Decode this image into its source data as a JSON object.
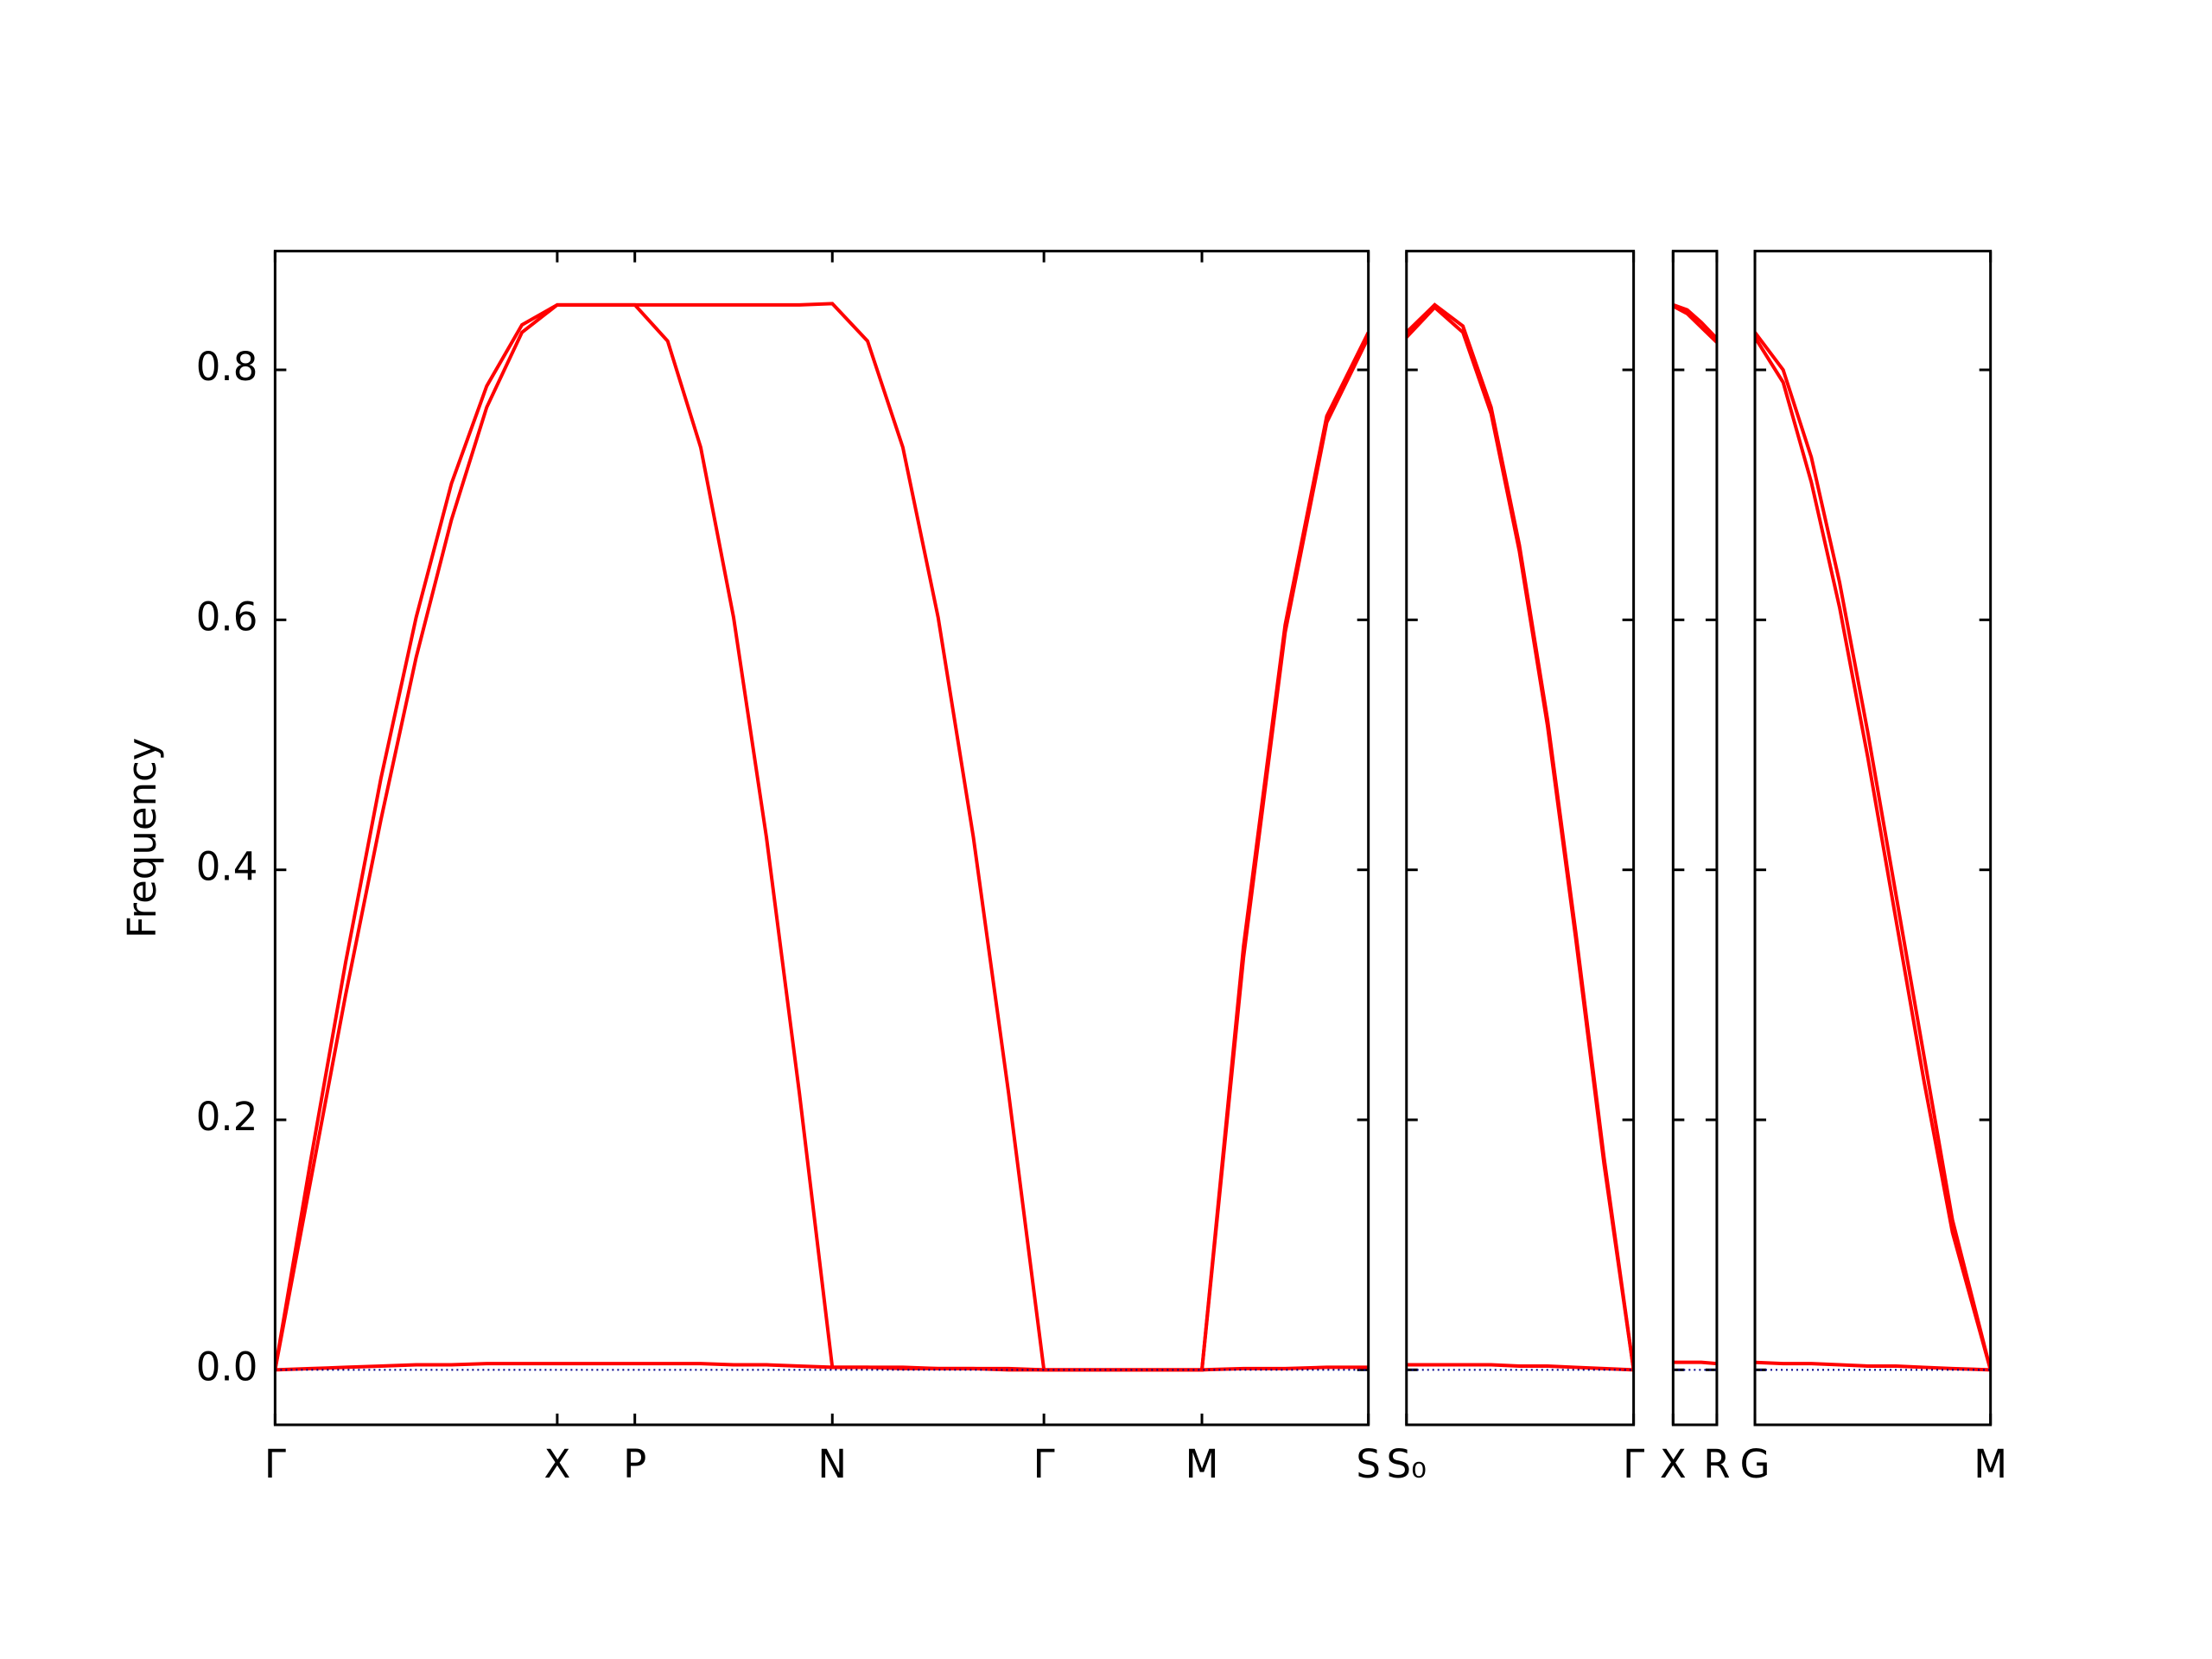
{
  "chart_data": [
    {
      "type": "line",
      "ylabel": "Frequency",
      "ylim": [
        -0.044,
        0.895
      ],
      "yticks": [
        {
          "value": 0,
          "label": "0.0"
        },
        0.2,
        0.4,
        0.6,
        0.8
      ],
      "xlim": [
        0,
        7.75
      ],
      "xticks": [
        {
          "value": 0,
          "label": "Γ"
        },
        {
          "value": 2.0,
          "label": "X"
        },
        {
          "value": 2.55,
          "label": "P"
        },
        {
          "value": 3.95,
          "label": "N"
        },
        {
          "value": 5.45,
          "label": "Γ"
        },
        {
          "value": 6.57,
          "label": "M"
        },
        {
          "value": 7.75,
          "label": "S"
        }
      ],
      "x": [
        0,
        0.25,
        0.5,
        0.75,
        1.0,
        1.25,
        1.5,
        1.75,
        2.0,
        2.55,
        2.783,
        3.017,
        3.25,
        3.483,
        3.717,
        3.95,
        4.2,
        4.45,
        4.7,
        4.95,
        5.2,
        5.45,
        6.57,
        6.865,
        7.16,
        7.455,
        7.75
      ],
      "series": [
        {
          "color": "#ff0000",
          "values": [
            0,
            0.166,
            0.326,
            0.473,
            0.602,
            0.709,
            0.787,
            0.836,
            0.852,
            0.852,
            0.852,
            0.852,
            0.852,
            0.852,
            0.852,
            0.853,
            0.823,
            0.738,
            0.602,
            0.426,
            0.221,
            0,
            0,
            0.339,
            0.596,
            0.763,
            0.83
          ]
        },
        {
          "color": "#ff0000",
          "values": [
            0,
            0.15,
            0.3,
            0.44,
            0.57,
            0.68,
            0.77,
            0.83,
            0.852,
            0.852,
            0.823,
            0.738,
            0.602,
            0.426,
            0.221,
            0.002,
            0.002,
            0.002,
            0.001,
            0.001,
            0.001,
            0,
            0,
            0.33,
            0.59,
            0.758,
            0.826
          ]
        },
        {
          "color": "#ff0000",
          "values": [
            0,
            0.001,
            0.002,
            0.003,
            0.004,
            0.004,
            0.005,
            0.005,
            0.005,
            0.005,
            0.005,
            0.005,
            0.004,
            0.004,
            0.003,
            0.002,
            0.002,
            0.001,
            0.001,
            0.001,
            0,
            0,
            0,
            0.001,
            0.001,
            0.002,
            0.002
          ]
        },
        {
          "color": "#00008b",
          "linestyle": "dotted",
          "values": [
            0,
            0,
            0,
            0,
            0,
            0,
            0,
            0,
            0,
            0,
            0,
            0,
            0,
            0,
            0,
            0,
            0,
            0,
            0,
            0,
            0,
            0,
            0,
            0,
            0,
            0,
            0
          ]
        }
      ]
    },
    {
      "type": "line",
      "xlim": [
        0,
        1.61
      ],
      "xticks": [
        {
          "value": 0,
          "label": "S₀"
        },
        {
          "value": 1.61,
          "label": "Γ"
        }
      ],
      "x": [
        0,
        0.2,
        0.4,
        0.6,
        0.8,
        1.0,
        1.2,
        1.4,
        1.61
      ],
      "series": [
        {
          "color": "#ff0000",
          "values": [
            0.83,
            0.852,
            0.835,
            0.77,
            0.66,
            0.52,
            0.35,
            0.17,
            0
          ]
        },
        {
          "color": "#ff0000",
          "values": [
            0.826,
            0.85,
            0.83,
            0.765,
            0.655,
            0.515,
            0.345,
            0.165,
            0
          ]
        },
        {
          "color": "#ff0000",
          "values": [
            0.004,
            0.004,
            0.004,
            0.004,
            0.003,
            0.003,
            0.002,
            0.001,
            0
          ]
        },
        {
          "color": "#00008b",
          "linestyle": "dotted",
          "values": [
            0,
            0,
            0,
            0,
            0,
            0,
            0,
            0,
            0
          ]
        }
      ]
    },
    {
      "type": "line",
      "xlim": [
        0,
        0.31
      ],
      "xticks": [
        {
          "value": 0,
          "label": "X"
        },
        {
          "value": 0.31,
          "label": "R"
        }
      ],
      "x": [
        0,
        0.1,
        0.2,
        0.31
      ],
      "series": [
        {
          "color": "#ff0000",
          "values": [
            0.852,
            0.848,
            0.838,
            0.825
          ]
        },
        {
          "color": "#ff0000",
          "values": [
            0.851,
            0.845,
            0.834,
            0.822
          ]
        },
        {
          "color": "#ff0000",
          "values": [
            0.006,
            0.006,
            0.006,
            0.005
          ]
        },
        {
          "color": "#00008b",
          "linestyle": "dotted",
          "values": [
            0,
            0,
            0,
            0
          ]
        }
      ]
    },
    {
      "type": "line",
      "xlim": [
        0,
        1.67
      ],
      "xticks": [
        {
          "value": 0,
          "label": "G"
        },
        {
          "value": 1.67,
          "label": "M"
        }
      ],
      "x": [
        0,
        0.2,
        0.4,
        0.6,
        0.8,
        1.0,
        1.2,
        1.4,
        1.67
      ],
      "series": [
        {
          "color": "#ff0000",
          "values": [
            0.83,
            0.8,
            0.73,
            0.63,
            0.51,
            0.38,
            0.25,
            0.12,
            0
          ]
        },
        {
          "color": "#ff0000",
          "values": [
            0.826,
            0.79,
            0.71,
            0.61,
            0.49,
            0.36,
            0.23,
            0.11,
            0
          ]
        },
        {
          "color": "#ff0000",
          "values": [
            0.006,
            0.005,
            0.005,
            0.004,
            0.003,
            0.003,
            0.002,
            0.001,
            0
          ]
        },
        {
          "color": "#00008b",
          "linestyle": "dotted",
          "values": [
            0,
            0,
            0,
            0,
            0,
            0,
            0,
            0,
            0
          ]
        }
      ]
    }
  ]
}
